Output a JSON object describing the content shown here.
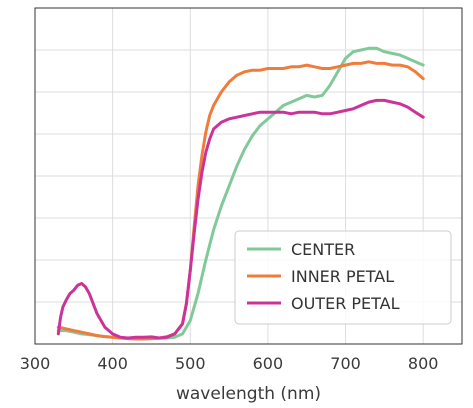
{
  "chart_data": {
    "type": "line",
    "title": "",
    "xlabel": "wavelength (nm)",
    "ylabel": "",
    "xlim": [
      300,
      850
    ],
    "ylim": [
      0,
      1
    ],
    "xticks": [
      300,
      400,
      500,
      600,
      700,
      800
    ],
    "ytick_count": 8,
    "grid": true,
    "legend_position": "bottom-right",
    "series": [
      {
        "name": "CENTER",
        "color": "#82c99a",
        "x": [
          330,
          340,
          350,
          360,
          370,
          380,
          390,
          400,
          410,
          420,
          430,
          440,
          450,
          460,
          470,
          480,
          490,
          500,
          510,
          520,
          530,
          540,
          550,
          560,
          570,
          580,
          590,
          600,
          610,
          620,
          630,
          640,
          650,
          660,
          670,
          680,
          690,
          700,
          710,
          720,
          730,
          740,
          750,
          760,
          770,
          780,
          790,
          800
        ],
        "y": [
          0.04,
          0.04,
          0.035,
          0.03,
          0.028,
          0.025,
          0.022,
          0.02,
          0.018,
          0.017,
          0.016,
          0.016,
          0.016,
          0.017,
          0.018,
          0.02,
          0.03,
          0.07,
          0.15,
          0.25,
          0.34,
          0.41,
          0.47,
          0.53,
          0.58,
          0.62,
          0.65,
          0.67,
          0.69,
          0.71,
          0.72,
          0.73,
          0.74,
          0.735,
          0.74,
          0.77,
          0.81,
          0.85,
          0.87,
          0.875,
          0.88,
          0.88,
          0.87,
          0.865,
          0.86,
          0.85,
          0.84,
          0.83
        ]
      },
      {
        "name": "INNER PETAL",
        "color": "#f07c3c",
        "x": [
          330,
          340,
          350,
          360,
          370,
          380,
          390,
          400,
          410,
          420,
          430,
          440,
          450,
          460,
          470,
          480,
          490,
          495,
          500,
          505,
          510,
          515,
          520,
          525,
          530,
          540,
          550,
          560,
          570,
          580,
          590,
          600,
          610,
          620,
          630,
          640,
          650,
          660,
          670,
          680,
          690,
          700,
          710,
          720,
          730,
          740,
          750,
          760,
          770,
          780,
          790,
          800
        ],
        "y": [
          0.05,
          0.045,
          0.04,
          0.035,
          0.03,
          0.025,
          0.022,
          0.02,
          0.018,
          0.016,
          0.015,
          0.015,
          0.016,
          0.018,
          0.022,
          0.03,
          0.06,
          0.12,
          0.22,
          0.35,
          0.47,
          0.56,
          0.63,
          0.68,
          0.71,
          0.75,
          0.78,
          0.8,
          0.81,
          0.815,
          0.815,
          0.82,
          0.82,
          0.82,
          0.825,
          0.825,
          0.83,
          0.825,
          0.82,
          0.82,
          0.825,
          0.83,
          0.835,
          0.835,
          0.84,
          0.835,
          0.835,
          0.83,
          0.83,
          0.825,
          0.81,
          0.79
        ]
      },
      {
        "name": "OUTER PETAL",
        "color": "#cc3399",
        "x": [
          330,
          333,
          336,
          340,
          345,
          350,
          355,
          360,
          365,
          370,
          375,
          380,
          390,
          400,
          410,
          420,
          430,
          440,
          450,
          460,
          470,
          480,
          490,
          495,
          500,
          505,
          510,
          515,
          520,
          525,
          530,
          540,
          550,
          560,
          570,
          580,
          590,
          600,
          610,
          620,
          630,
          640,
          650,
          660,
          670,
          680,
          690,
          700,
          710,
          720,
          730,
          740,
          750,
          760,
          770,
          780,
          790,
          800
        ],
        "y": [
          0.03,
          0.08,
          0.11,
          0.13,
          0.15,
          0.16,
          0.175,
          0.18,
          0.17,
          0.15,
          0.12,
          0.09,
          0.05,
          0.03,
          0.02,
          0.018,
          0.02,
          0.02,
          0.021,
          0.018,
          0.02,
          0.03,
          0.06,
          0.12,
          0.22,
          0.33,
          0.43,
          0.51,
          0.57,
          0.61,
          0.64,
          0.66,
          0.67,
          0.675,
          0.68,
          0.685,
          0.69,
          0.69,
          0.69,
          0.69,
          0.685,
          0.69,
          0.69,
          0.69,
          0.685,
          0.685,
          0.69,
          0.695,
          0.7,
          0.71,
          0.72,
          0.725,
          0.725,
          0.72,
          0.715,
          0.705,
          0.69,
          0.675
        ]
      }
    ]
  }
}
